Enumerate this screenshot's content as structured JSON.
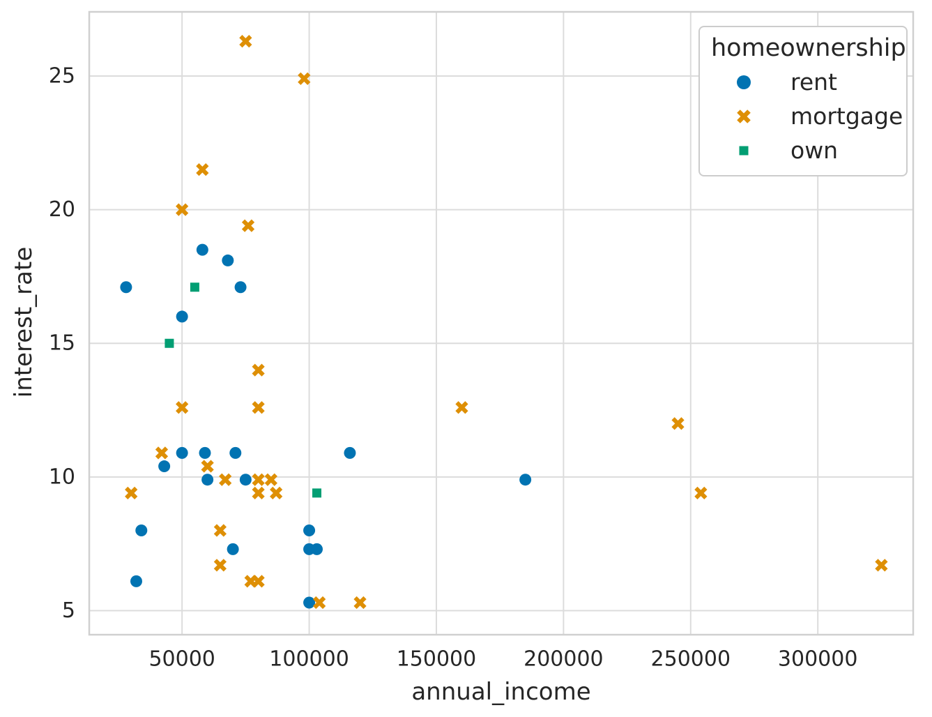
{
  "figure": {
    "background": "#ffffff"
  },
  "style": {
    "grid_color": "#dcdcdc",
    "spine_color": "#d0d0d0",
    "text_color": "#262626",
    "tick_font_px": 30
  },
  "chart_data": {
    "type": "scatter",
    "title": "",
    "xlabel": "annual_income",
    "ylabel": "interest_rate",
    "xlim": [
      13500,
      337500
    ],
    "ylim": [
      4.1,
      27.4
    ],
    "x_ticks": [
      50000,
      100000,
      150000,
      200000,
      250000,
      300000
    ],
    "y_ticks": [
      5,
      10,
      15,
      20,
      25
    ],
    "grid": true,
    "legend": {
      "title": "homeownership",
      "position": "upper-right"
    },
    "series": [
      {
        "name": "rent",
        "marker": "circle",
        "color": "#0173b2",
        "points": [
          [
            28000,
            17.1
          ],
          [
            58000,
            18.5
          ],
          [
            68000,
            18.1
          ],
          [
            73000,
            17.1
          ],
          [
            50000,
            16.0
          ],
          [
            50000,
            10.9
          ],
          [
            59000,
            10.9
          ],
          [
            71000,
            10.9
          ],
          [
            116000,
            10.9
          ],
          [
            43000,
            10.4
          ],
          [
            60000,
            9.9
          ],
          [
            75000,
            9.9
          ],
          [
            185000,
            9.9
          ],
          [
            34000,
            8.0
          ],
          [
            100000,
            8.0
          ],
          [
            70000,
            7.3
          ],
          [
            100000,
            7.3
          ],
          [
            103000,
            7.3
          ],
          [
            32000,
            6.1
          ],
          [
            100000,
            5.3
          ]
        ]
      },
      {
        "name": "mortgage",
        "marker": "x",
        "color": "#de8f05",
        "points": [
          [
            75000,
            26.3
          ],
          [
            98000,
            24.9
          ],
          [
            58000,
            21.5
          ],
          [
            50000,
            20.0
          ],
          [
            76000,
            19.4
          ],
          [
            80000,
            14.0
          ],
          [
            50000,
            12.6
          ],
          [
            80000,
            12.6
          ],
          [
            160000,
            12.6
          ],
          [
            245000,
            12.0
          ],
          [
            42000,
            10.9
          ],
          [
            60000,
            10.4
          ],
          [
            67000,
            9.9
          ],
          [
            80000,
            9.9
          ],
          [
            85000,
            9.9
          ],
          [
            30000,
            9.4
          ],
          [
            80000,
            9.4
          ],
          [
            87000,
            9.4
          ],
          [
            254000,
            9.4
          ],
          [
            65000,
            8.0
          ],
          [
            65000,
            6.7
          ],
          [
            325000,
            6.7
          ],
          [
            77000,
            6.1
          ],
          [
            80000,
            6.1
          ],
          [
            104000,
            5.3
          ],
          [
            120000,
            5.3
          ]
        ]
      },
      {
        "name": "own",
        "marker": "square",
        "color": "#029e73",
        "points": [
          [
            55000,
            17.1
          ],
          [
            45000,
            15.0
          ],
          [
            103000,
            9.4
          ]
        ]
      }
    ]
  }
}
